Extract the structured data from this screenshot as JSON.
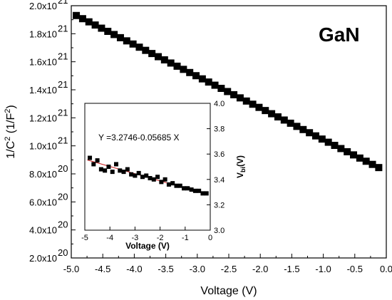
{
  "chart_data": [
    {
      "type": "scatter",
      "annotation": "GaN",
      "xlabel": "Voltage (V)",
      "ylabel": "1/C² (1/F²)",
      "ylabel_parts": {
        "pre": "1/C",
        "sup1": "2",
        "mid": " (1/F",
        "sup2": "2",
        "post": ")"
      },
      "xlim": [
        -5.0,
        0.0
      ],
      "ylim": [
        2e+20,
        2e+21
      ],
      "xticks": [
        -5.0,
        -4.5,
        -4.0,
        -3.5,
        -3.0,
        -2.5,
        -2.0,
        -1.5,
        -1.0,
        -0.5,
        0.0
      ],
      "xtick_labels": [
        "-5.0",
        "-4.5",
        "-4.0",
        "-3.5",
        "-3.0",
        "-2.5",
        "-2.0",
        "-1.5",
        "-1.0",
        "-0.5",
        "0.0"
      ],
      "yticks": [
        2e+20,
        4e+20,
        6e+20,
        8e+20,
        1e+21,
        1.2e+21,
        1.4e+21,
        1.6e+21,
        1.8e+21,
        2e+21
      ],
      "ytick_labels": [
        {
          "mantissa": "2.0x10",
          "exp": "20"
        },
        {
          "mantissa": "4.0x10",
          "exp": "20"
        },
        {
          "mantissa": "6.0x10",
          "exp": "20"
        },
        {
          "mantissa": "8.0x10",
          "exp": "20"
        },
        {
          "mantissa": "1.0x10",
          "exp": "21"
        },
        {
          "mantissa": "1.2x10",
          "exp": "21"
        },
        {
          "mantissa": "1.4x10",
          "exp": "21"
        },
        {
          "mantissa": "1.6x10",
          "exp": "21"
        },
        {
          "mantissa": "1.8x10",
          "exp": "21"
        },
        {
          "mantissa": "2.0x10",
          "exp": "21"
        }
      ],
      "series": [
        {
          "start": [
            -4.92,
            1.93e+21
          ],
          "end": [
            -0.1,
            8.45e+20
          ],
          "step": 0.1,
          "marker": "square",
          "color": "#000000"
        }
      ]
    },
    {
      "type": "scatter",
      "inset": true,
      "equation": "Y =3.2746-0.05685 X",
      "xlabel": "Voltage (V)",
      "ylabel": "V_bi (V)",
      "ylabel_parts": {
        "pre": "V",
        "sub": "bi",
        "post": "(V)"
      },
      "xlim": [
        -5,
        0
      ],
      "ylim": [
        3.0,
        4.0
      ],
      "xticks": [
        -5,
        -4,
        -3,
        -2,
        -1,
        0
      ],
      "xtick_labels": [
        "-5",
        "-4",
        "-3",
        "-2",
        "-1",
        "0"
      ],
      "yticks": [
        3.0,
        3.2,
        3.4,
        3.6,
        3.8,
        4.0
      ],
      "ytick_labels": [
        "3.0",
        "3.2",
        "3.4",
        "3.6",
        "3.8",
        "4.0"
      ],
      "fit": {
        "intercept": 3.2746,
        "slope": -0.05685,
        "color": "#cc2222"
      },
      "series": [
        {
          "marker": "square",
          "color": "#000000",
          "x": [
            -4.8,
            -4.65,
            -4.5,
            -4.35,
            -4.2,
            -4.05,
            -3.9,
            -3.75,
            -3.6,
            -3.45,
            -3.3,
            -3.15,
            -3.0,
            -2.85,
            -2.7,
            -2.55,
            -2.4,
            -2.25,
            -2.1,
            -1.95,
            -1.8,
            -1.65,
            -1.5,
            -1.35,
            -1.2,
            -1.05,
            -0.9,
            -0.75,
            -0.6,
            -0.45,
            -0.3,
            -0.15
          ],
          "y": [
            3.57,
            3.52,
            3.55,
            3.48,
            3.47,
            3.5,
            3.46,
            3.52,
            3.47,
            3.46,
            3.48,
            3.44,
            3.43,
            3.45,
            3.42,
            3.43,
            3.41,
            3.4,
            3.42,
            3.38,
            3.4,
            3.36,
            3.37,
            3.35,
            3.35,
            3.33,
            3.33,
            3.32,
            3.31,
            3.31,
            3.29,
            3.29
          ]
        }
      ]
    }
  ]
}
